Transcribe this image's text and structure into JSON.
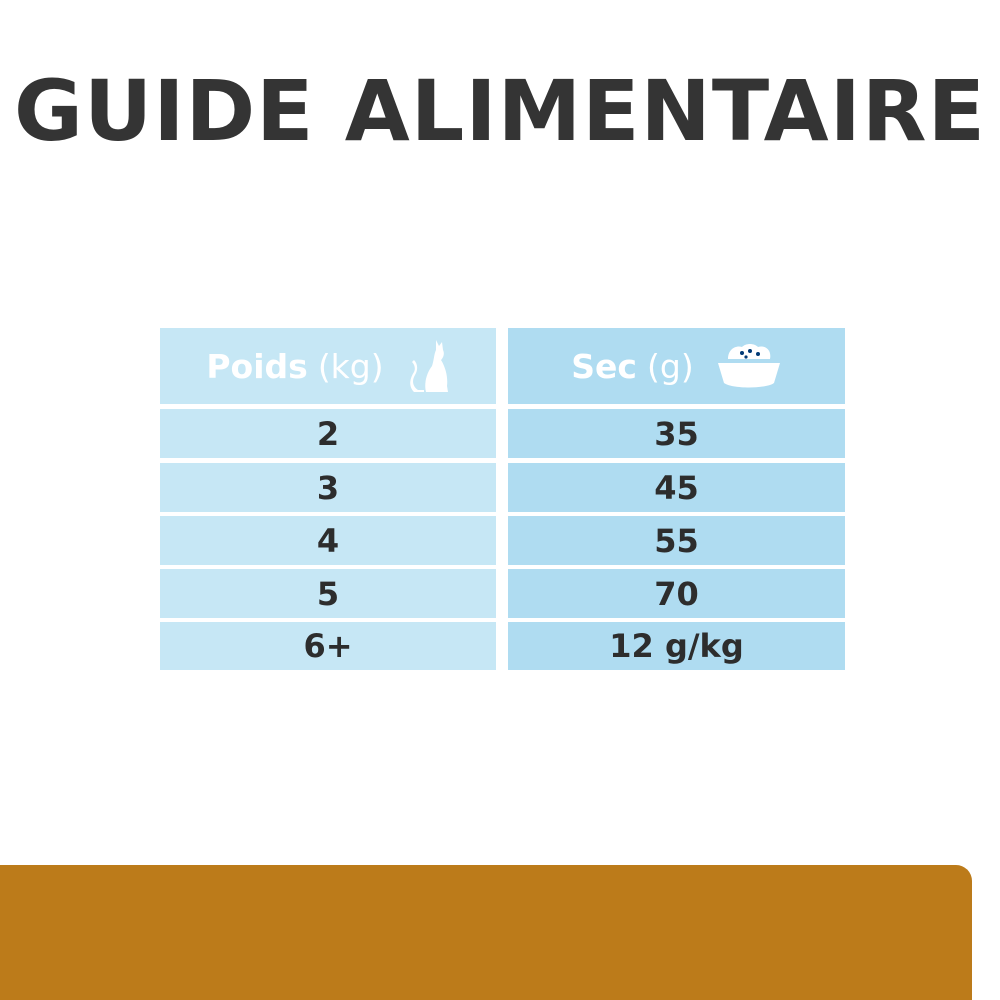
{
  "title": "GUIDE ALIMENTAIRE",
  "table": {
    "headers": [
      {
        "label": "Poids",
        "unit": "(kg)",
        "icon": "cat-icon"
      },
      {
        "label": "Sec",
        "unit": "(g)",
        "icon": "food-bowl-icon"
      }
    ],
    "rows": [
      [
        "2",
        "35"
      ],
      [
        "3",
        "45"
      ],
      [
        "4",
        "55"
      ],
      [
        "5",
        "70"
      ],
      [
        "6+",
        "12 g/kg"
      ]
    ]
  },
  "colors": {
    "header": "#013a76",
    "left_cells": "#c6e7f5",
    "right_cells": "#afdcf1",
    "footer_bar": "#bc7b1a"
  }
}
